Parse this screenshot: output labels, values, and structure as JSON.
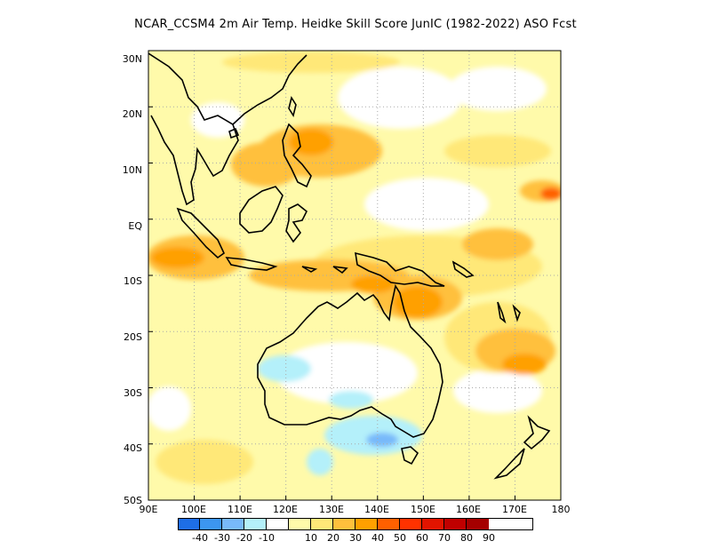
{
  "title": "NCAR_CCSM4  2m Air Temp. Heidke Skill Score JunIC (1982-2022) ASO Fcst",
  "lat_labels": [
    "30N",
    "20N",
    "10N",
    "EQ",
    "10S",
    "20S",
    "30S",
    "40S",
    "50S"
  ],
  "lon_labels": [
    "90E",
    "100E",
    "110E",
    "120E",
    "130E",
    "140E",
    "150E",
    "160E",
    "170E",
    "180"
  ],
  "colorbar": {
    "colors": [
      "#1e6ee6",
      "#3c96f0",
      "#78b9fa",
      "#b4f0fa",
      "#ffffff",
      "#fffaaa",
      "#ffe878",
      "#ffc03c",
      "#ffa000",
      "#ff6000",
      "#ff3200",
      "#e11400",
      "#c00000",
      "#a50000"
    ],
    "labels": [
      "-40",
      "-30",
      "-20",
      "-10",
      "10",
      "20",
      "30",
      "40",
      "50",
      "60",
      "70",
      "80",
      "90"
    ]
  },
  "map_extent": {
    "lon": [
      90,
      180
    ],
    "lat": [
      -50,
      30
    ]
  }
}
